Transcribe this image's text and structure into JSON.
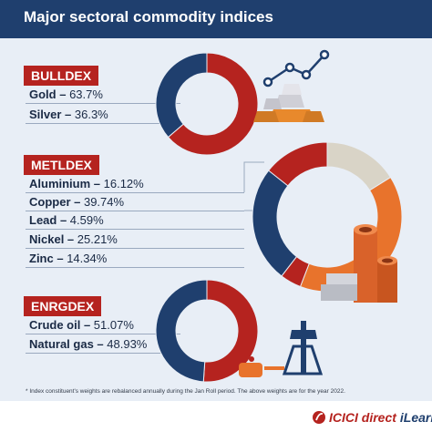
{
  "title": "Major sectoral commodity indices",
  "colors": {
    "navy": "#1f3f6e",
    "red": "#b5231f",
    "orange": "#e8732c",
    "beige": "#d9d4c7",
    "background": "#e8eef6"
  },
  "chart_data": [
    {
      "type": "pie",
      "donut": true,
      "index_name": "BULLDEX",
      "categories": [
        "Gold",
        "Silver"
      ],
      "values": [
        63.7,
        36.3
      ],
      "labels": [
        "Gold – ",
        "Silver – "
      ],
      "value_labels": [
        "63.7%",
        "36.3%"
      ],
      "colors": [
        "#b5231f",
        "#1f3f6e"
      ]
    },
    {
      "type": "pie",
      "donut": true,
      "index_name": "METLDEX",
      "categories": [
        "Aluminium",
        "Copper",
        "Lead",
        "Nickel",
        "Zinc"
      ],
      "values": [
        16.12,
        39.74,
        4.59,
        25.21,
        14.34
      ],
      "labels": [
        "Aluminium – ",
        "Copper – ",
        "Lead – ",
        "Nickel – ",
        "Zinc – "
      ],
      "value_labels": [
        "16.12%",
        "39.74%",
        "4.59%",
        "25.21%",
        "14.34%"
      ],
      "colors": [
        "#d9d4c7",
        "#e8732c",
        "#b5231f",
        "#1f3f6e",
        "#b5231f"
      ]
    },
    {
      "type": "pie",
      "donut": true,
      "index_name": "ENRGDEX",
      "categories": [
        "Crude oil",
        "Natural gas"
      ],
      "values": [
        51.07,
        48.93
      ],
      "labels": [
        "Crude oil – ",
        "Natural gas – "
      ],
      "value_labels": [
        "51.07%",
        "48.93%"
      ],
      "colors": [
        "#b5231f",
        "#1f3f6e"
      ]
    }
  ],
  "footnote": "* Index constituent's weights are rebalanced annually during the Jan Roll period. The above weights are for the year 2022.",
  "brand": {
    "logo_text": "ICICI direct",
    "logo_suffix": "iLearn"
  },
  "illustrations": [
    "gold-bars-icon",
    "line-trend-icon",
    "metal-pipes-icon",
    "oil-pump-icon"
  ]
}
